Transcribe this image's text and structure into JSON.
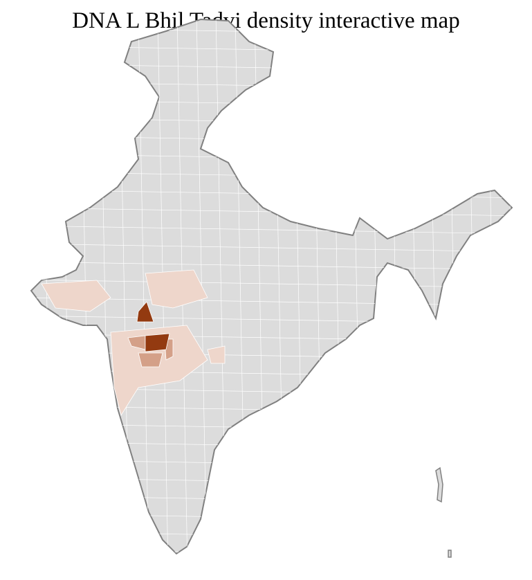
{
  "title": "DNA L Bhil Tadvi density interactive map",
  "colors": {
    "no_data": "#dcdcdc",
    "border": "#808080",
    "district_border": "#ffffff",
    "low": "#eed6cb",
    "medium": "#d4a088",
    "high": "#933a10"
  }
}
